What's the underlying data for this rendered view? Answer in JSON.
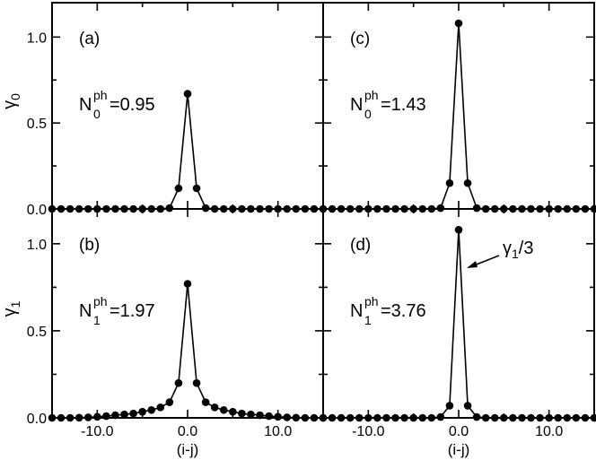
{
  "chart_data": [
    {
      "type": "line",
      "panel_label": "(a)",
      "annotation": {
        "base": "N",
        "sub": "0",
        "sup": "ph",
        "value": "=0.95"
      },
      "ylabel": {
        "base": "γ",
        "sub": "0"
      },
      "xlabel": "",
      "xlim": [
        -15,
        15
      ],
      "ylim": [
        0,
        1.2
      ],
      "x": [
        -15,
        -14,
        -13,
        -12,
        -11,
        -10,
        -9,
        -8,
        -7,
        -6,
        -5,
        -4,
        -3,
        -2,
        -1,
        0,
        1,
        2,
        3,
        4,
        5,
        6,
        7,
        8,
        9,
        10,
        11,
        12,
        13,
        14,
        15
      ],
      "values": [
        0,
        0,
        0,
        0,
        0,
        0,
        0,
        0,
        0,
        0,
        0,
        0,
        0,
        0.005,
        0.12,
        0.67,
        0.12,
        0.005,
        0,
        0,
        0,
        0,
        0,
        0,
        0,
        0,
        0,
        0,
        0,
        0,
        0
      ]
    },
    {
      "type": "line",
      "panel_label": "(c)",
      "annotation": {
        "base": "N",
        "sub": "0",
        "sup": "ph",
        "value": "=1.43"
      },
      "xlabel": "",
      "xlim": [
        -15,
        15
      ],
      "ylim": [
        0,
        1.2
      ],
      "x": [
        -15,
        -14,
        -13,
        -12,
        -11,
        -10,
        -9,
        -8,
        -7,
        -6,
        -5,
        -4,
        -3,
        -2,
        -1,
        0,
        1,
        2,
        3,
        4,
        5,
        6,
        7,
        8,
        9,
        10,
        11,
        12,
        13,
        14,
        15
      ],
      "values": [
        0,
        0,
        0,
        0,
        0,
        0,
        0,
        0,
        0,
        0,
        0,
        0,
        0,
        0.005,
        0.15,
        1.08,
        0.15,
        0.005,
        0,
        0,
        0,
        0,
        0,
        0,
        0,
        0,
        0,
        0,
        0,
        0,
        0
      ]
    },
    {
      "type": "line",
      "panel_label": "(b)",
      "annotation": {
        "base": "N",
        "sub": "1",
        "sup": "ph",
        "value": "=1.97"
      },
      "ylabel": {
        "base": "γ",
        "sub": "1"
      },
      "xlabel": "(i-j)",
      "xlim": [
        -15,
        15
      ],
      "ylim": [
        0,
        1.2
      ],
      "x": [
        -15,
        -14,
        -13,
        -12,
        -11,
        -10,
        -9,
        -8,
        -7,
        -6,
        -5,
        -4,
        -3,
        -2,
        -1,
        0,
        1,
        2,
        3,
        4,
        5,
        6,
        7,
        8,
        9,
        10,
        11,
        12,
        13,
        14,
        15
      ],
      "values": [
        0,
        0,
        0,
        0.001,
        0.003,
        0.006,
        0.01,
        0.015,
        0.02,
        0.025,
        0.035,
        0.045,
        0.06,
        0.09,
        0.2,
        0.77,
        0.2,
        0.09,
        0.06,
        0.045,
        0.035,
        0.025,
        0.02,
        0.015,
        0.01,
        0.006,
        0.003,
        0.001,
        0,
        0,
        0
      ]
    },
    {
      "type": "line",
      "panel_label": "(d)",
      "annotation": {
        "base": "N",
        "sub": "1",
        "sup": "ph",
        "value": "=3.76"
      },
      "arrow_label": {
        "base": "γ",
        "sub": "1",
        "rest": "/3"
      },
      "xlabel": "(i-j)",
      "xlim": [
        -15,
        15
      ],
      "ylim": [
        0,
        1.2
      ],
      "x": [
        -15,
        -14,
        -13,
        -12,
        -11,
        -10,
        -9,
        -8,
        -7,
        -6,
        -5,
        -4,
        -3,
        -2,
        -1,
        0,
        1,
        2,
        3,
        4,
        5,
        6,
        7,
        8,
        9,
        10,
        11,
        12,
        13,
        14,
        15
      ],
      "values": [
        0,
        0,
        0,
        0,
        0,
        0,
        0,
        0,
        0,
        0,
        0,
        0,
        0,
        0.005,
        0.07,
        1.08,
        0.07,
        0.005,
        0,
        0,
        0,
        0,
        0,
        0,
        0,
        0,
        0,
        0,
        0,
        0,
        0
      ]
    }
  ],
  "y_tick_labels": [
    "0.0",
    "0.5",
    "1.0"
  ],
  "y_tick_values": [
    0,
    0.5,
    1.0
  ],
  "x_tick_labels": [
    "-10.0",
    "0.0",
    "10.0"
  ],
  "x_tick_values": [
    -10,
    0,
    10
  ]
}
